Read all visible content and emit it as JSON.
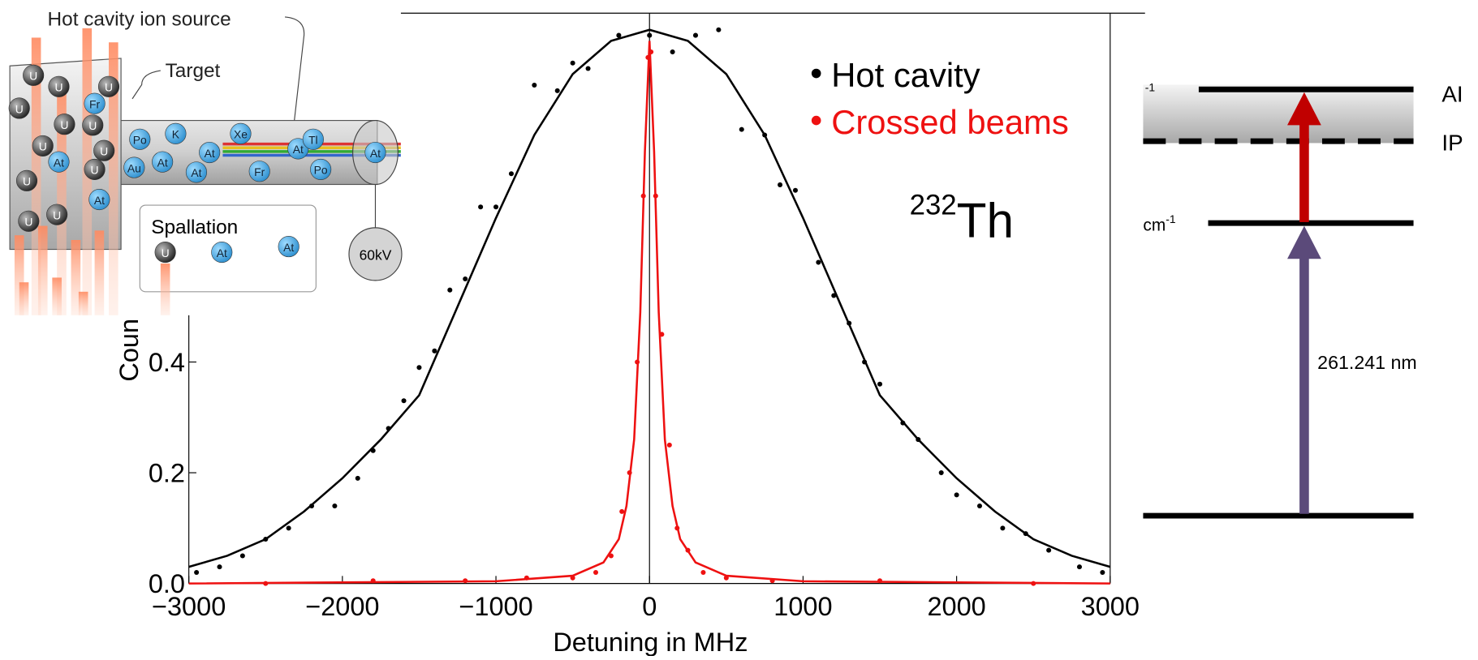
{
  "chart_data": {
    "type": "scatter",
    "xlabel": "Detuning in MHz",
    "ylabel": "Coun",
    "xlim": [
      -3000,
      3000
    ],
    "ylim": [
      0,
      1.03
    ],
    "xticks": [
      {
        "value": -3000,
        "label": "−3000"
      },
      {
        "value": -2000,
        "label": "−2000"
      },
      {
        "value": -1000,
        "label": "−1000"
      },
      0,
      1000,
      2000,
      3000
    ],
    "yticks": [
      {
        "value": 0,
        "label": "0.0"
      },
      0.2,
      0.4
    ],
    "zero_line": true,
    "annotation": {
      "mass": "232",
      "element": "Th"
    },
    "series": [
      {
        "name": "Hot cavity",
        "color": "#000000",
        "x": [
          -2950,
          -2800,
          -2650,
          -2500,
          -2350,
          -2200,
          -2050,
          -1900,
          -1800,
          -1700,
          -1600,
          -1500,
          -1400,
          -1300,
          -1200,
          -1100,
          -1000,
          -900,
          -750,
          -600,
          -500,
          -400,
          -200,
          0,
          150,
          300,
          450,
          600,
          750,
          850,
          950,
          1100,
          1200,
          1300,
          1400,
          1500,
          1650,
          1750,
          1900,
          2000,
          2150,
          2300,
          2450,
          2600,
          2800,
          2950
        ],
        "values": [
          0.02,
          0.03,
          0.05,
          0.08,
          0.1,
          0.14,
          0.14,
          0.19,
          0.24,
          0.28,
          0.33,
          0.39,
          0.42,
          0.53,
          0.55,
          0.68,
          0.68,
          0.74,
          0.9,
          0.89,
          0.94,
          0.93,
          0.99,
          0.99,
          0.96,
          0.99,
          1.0,
          0.82,
          0.81,
          0.72,
          0.71,
          0.58,
          0.52,
          0.47,
          0.4,
          0.36,
          0.29,
          0.26,
          0.2,
          0.16,
          0.14,
          0.1,
          0.09,
          0.06,
          0.03,
          0.02
        ],
        "fit_x": [
          -3000,
          -2750,
          -2500,
          -2250,
          -2000,
          -1750,
          -1500,
          -1250,
          -1000,
          -750,
          -500,
          -250,
          0,
          250,
          500,
          750,
          1000,
          1250,
          1500,
          1750,
          2000,
          2250,
          2500,
          2750,
          3000
        ],
        "fit_values": [
          0.03,
          0.05,
          0.08,
          0.13,
          0.19,
          0.26,
          0.34,
          0.5,
          0.66,
          0.81,
          0.92,
          0.98,
          1.0,
          0.98,
          0.92,
          0.81,
          0.66,
          0.5,
          0.34,
          0.26,
          0.19,
          0.13,
          0.08,
          0.05,
          0.03
        ]
      },
      {
        "name": "Crossed beams",
        "color": "#ee1111",
        "x": [
          -2500,
          -1800,
          -1200,
          -800,
          -500,
          -350,
          -250,
          -180,
          -130,
          -80,
          -40,
          -10,
          10,
          40,
          80,
          130,
          180,
          250,
          350,
          500,
          800,
          1500,
          2500
        ],
        "values": [
          0,
          0.005,
          0.005,
          0.01,
          0.01,
          0.02,
          0.05,
          0.13,
          0.2,
          0.4,
          0.7,
          0.95,
          0.96,
          0.7,
          0.45,
          0.25,
          0.1,
          0.06,
          0.02,
          0.01,
          0.005,
          0.005,
          0
        ],
        "fit_x": [
          -3000,
          -1000,
          -500,
          -300,
          -200,
          -150,
          -100,
          -60,
          -30,
          0,
          30,
          60,
          100,
          150,
          200,
          300,
          500,
          1000,
          3000
        ],
        "fit_values": [
          0,
          0.004,
          0.014,
          0.038,
          0.08,
          0.14,
          0.26,
          0.49,
          0.78,
          0.98,
          0.78,
          0.49,
          0.26,
          0.14,
          0.08,
          0.038,
          0.014,
          0.004,
          0
        ]
      }
    ]
  },
  "inset": {
    "title": "Hot cavity ion source",
    "target": "Target",
    "spallation": "Spallation",
    "voltage": "60kV",
    "atoms": [
      "U",
      "U",
      "U",
      "Fr",
      "U",
      "U",
      "U",
      "U",
      "At",
      "U",
      "U",
      "U",
      "At",
      "U",
      "U",
      "Po",
      "K",
      "Xe",
      "At",
      "Au",
      "At",
      "Fr",
      "At",
      "Tl",
      "Po",
      "At",
      "At",
      "U",
      "At",
      "At"
    ]
  },
  "levels": {
    "ai": "AI",
    "ip": "IP",
    "wavelength": "261.241 nm",
    "unit_top": "-1",
    "unit_mid": "cm",
    "unit_mid_sup": "-1"
  }
}
